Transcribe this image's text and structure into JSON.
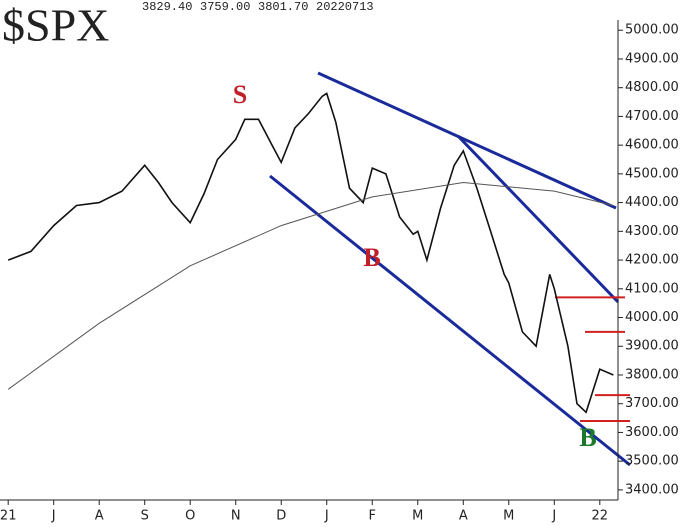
{
  "chart_data": {
    "type": "line",
    "header": {
      "symbol": "$SPX",
      "fields": [
        "3829.40",
        "3759.00",
        "3801.70",
        "20220713"
      ]
    },
    "xlim": [
      -0.18,
      13.4
    ],
    "xticks": [
      {
        "value": 0,
        "label": "21"
      },
      {
        "value": 1,
        "label": "J"
      },
      {
        "value": 2,
        "label": "A"
      },
      {
        "value": 3,
        "label": "S"
      },
      {
        "value": 4,
        "label": "O"
      },
      {
        "value": 5,
        "label": "N"
      },
      {
        "value": 6,
        "label": "D"
      },
      {
        "value": 7,
        "label": "J"
      },
      {
        "value": 8,
        "label": "F"
      },
      {
        "value": 9,
        "label": "M"
      },
      {
        "value": 10,
        "label": "A"
      },
      {
        "value": 11,
        "label": "M"
      },
      {
        "value": 12,
        "label": "J"
      },
      {
        "value": 13,
        "label": "22"
      }
    ],
    "ylim": [
      3330,
      5060
    ],
    "yticks": [
      {
        "value": 3400,
        "label": "3400.00"
      },
      {
        "value": 3500,
        "label": "3500.00"
      },
      {
        "value": 3600,
        "label": "3600.00"
      },
      {
        "value": 3700,
        "label": "3700.00"
      },
      {
        "value": 3800,
        "label": "3800.00"
      },
      {
        "value": 3900,
        "label": "3900.00"
      },
      {
        "value": 4000,
        "label": "4000.00"
      },
      {
        "value": 4100,
        "label": "4100.00"
      },
      {
        "value": 4200,
        "label": "4200.00"
      },
      {
        "value": 4300,
        "label": "4300.00"
      },
      {
        "value": 4400,
        "label": "4400.00"
      },
      {
        "value": 4500,
        "label": "4500.00"
      },
      {
        "value": 4600,
        "label": "4600.00"
      },
      {
        "value": 4700,
        "label": "4700.00"
      },
      {
        "value": 4800,
        "label": "4800.00"
      },
      {
        "value": 4900,
        "label": "4900.00"
      },
      {
        "value": 5000,
        "label": "5000.00"
      }
    ],
    "series": [
      {
        "color": "#111111",
        "x": [
          0,
          0.5,
          1,
          1.5,
          2,
          2.5,
          3,
          3.3,
          3.6,
          4,
          4.3,
          4.6,
          5,
          5.2,
          5.5,
          5.8,
          6,
          6.3,
          6.6,
          6.9,
          7,
          7.2,
          7.5,
          7.8,
          8,
          8.3,
          8.6,
          8.9,
          9,
          9.2,
          9.5,
          9.8,
          10,
          10.3,
          10.6,
          10.9,
          11,
          11.3,
          11.6,
          11.9,
          12,
          12.3,
          12.5,
          12.7,
          13,
          13.3
        ],
        "values": [
          4200,
          4230,
          4320,
          4390,
          4400,
          4440,
          4530,
          4470,
          4400,
          4330,
          4430,
          4550,
          4620,
          4690,
          4690,
          4600,
          4540,
          4660,
          4710,
          4770,
          4780,
          4680,
          4450,
          4400,
          4520,
          4500,
          4350,
          4290,
          4300,
          4200,
          4380,
          4530,
          4580,
          4450,
          4300,
          4150,
          4120,
          3950,
          3900,
          4150,
          4100,
          3900,
          3700,
          3670,
          3820,
          3800
        ]
      },
      {
        "color": "#555555",
        "x": [
          0,
          2,
          4,
          6,
          8,
          10,
          12,
          13.3
        ],
        "values": [
          3750,
          3980,
          4180,
          4320,
          4420,
          4470,
          4440,
          4390
        ]
      }
    ],
    "levels": [
      4070,
      3950,
      3730,
      3640
    ],
    "level_color": "#d02020",
    "annotations": [
      {
        "text": "S",
        "color": "#c0202a"
      },
      {
        "text": "B",
        "color": "#c0202a"
      },
      {
        "text": "B",
        "color": "#1a7a2a"
      }
    ]
  }
}
